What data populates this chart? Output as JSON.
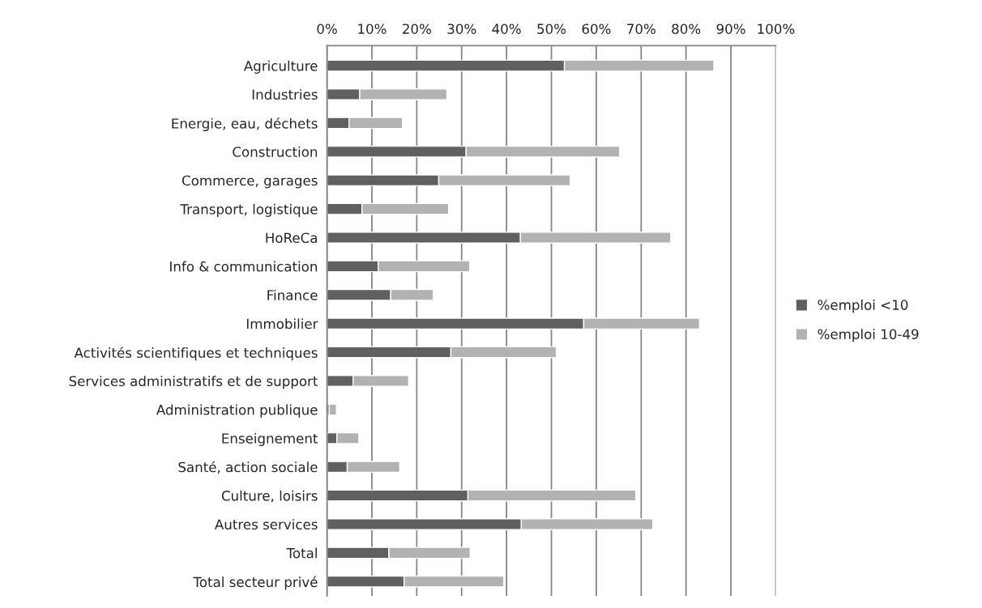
{
  "chart_data": {
    "type": "bar",
    "orientation": "horizontal",
    "stacked": true,
    "categories": [
      "Agriculture",
      "Industries",
      "Energie, eau, déchets",
      "Construction",
      "Commerce, garages",
      "Transport, logistique",
      "HoReCa",
      "Info & communication",
      "Finance",
      "Immobilier",
      "Activités scientifiques et techniques",
      "Services administratifs et de support",
      "Administration publique",
      "Enseignement",
      "Santé, action sociale",
      "Culture, loisirs",
      "Autres services",
      "Total",
      "Total secteur privé"
    ],
    "series": [
      {
        "name": "%emploi <10",
        "color": "#606060",
        "values": [
          52.9,
          7.3,
          4.9,
          31.0,
          24.9,
          7.8,
          43.1,
          11.4,
          14.2,
          57.2,
          27.6,
          5.8,
          0.5,
          2.2,
          4.5,
          31.4,
          43.3,
          13.8,
          17.2
        ]
      },
      {
        "name": "%emploi 10-49",
        "color": "#b2b2b2",
        "values": [
          33.3,
          19.4,
          11.9,
          34.2,
          29.3,
          19.3,
          33.5,
          20.4,
          9.5,
          25.8,
          23.5,
          12.4,
          1.6,
          4.9,
          11.7,
          37.4,
          29.3,
          18.1,
          22.2
        ]
      }
    ],
    "xlim": [
      0,
      100
    ],
    "xticks": [
      {
        "value": 0,
        "label": "0%"
      },
      {
        "value": 10,
        "label": "10%"
      },
      {
        "value": 20,
        "label": "20%"
      },
      {
        "value": 30,
        "label": "30%"
      },
      {
        "value": 40,
        "label": "40%"
      },
      {
        "value": 50,
        "label": "50%"
      },
      {
        "value": 60,
        "label": "60%"
      },
      {
        "value": 70,
        "label": "70%"
      },
      {
        "value": 80,
        "label": "80%"
      },
      {
        "value": 90,
        "label": "90%"
      },
      {
        "value": 100,
        "label": "100%"
      }
    ],
    "grid": "x",
    "legend": "right"
  }
}
